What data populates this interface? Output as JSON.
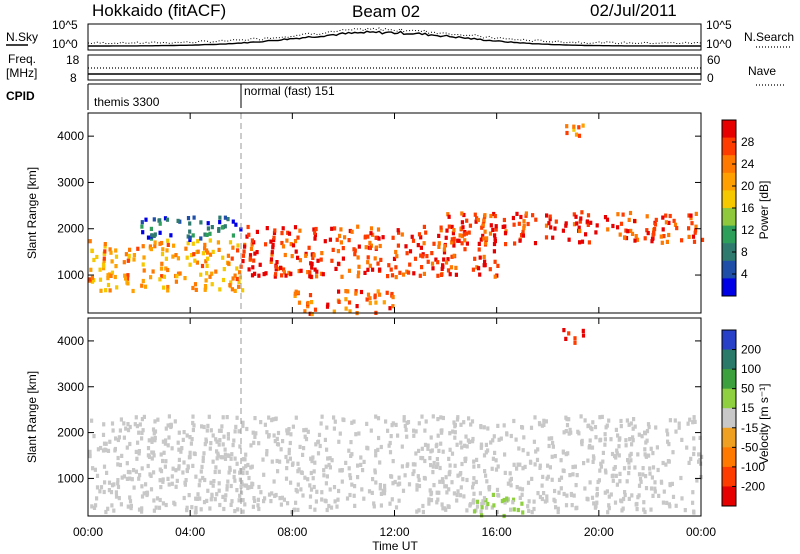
{
  "header": {
    "station": "Hokkaido (fitACF)",
    "beam": "Beam 02",
    "date": "02/Jul/2011"
  },
  "strip_panels": {
    "noise_left_label": "N.Sky",
    "noise_right_label": "N.Search",
    "noise_ticks_left": [
      "10^5",
      "10^0"
    ],
    "noise_ticks_right": [
      "10^5",
      "10^0"
    ],
    "freq_label_1": "Freq.",
    "freq_label_2": "[MHz]",
    "freq_ticks": [
      "18",
      "8"
    ],
    "nave_label": "Nave",
    "nave_ticks": [
      "60",
      "0"
    ],
    "cpid_label": "CPID",
    "cpid_modes": [
      {
        "label": "themis 3300",
        "start_hour": 0
      },
      {
        "label": "normal (fast) 151",
        "start_hour": 6
      }
    ]
  },
  "axes": {
    "x_label": "Time UT",
    "x_ticks": [
      "00:00",
      "04:00",
      "08:00",
      "12:00",
      "16:00",
      "20:00",
      "00:00"
    ],
    "y_label": "Slant Range [km]",
    "y_ticks": [
      "1000",
      "2000",
      "3000",
      "4000"
    ]
  },
  "power_colorbar": {
    "title": "Power [dB]",
    "ticks": [
      "28",
      "24",
      "20",
      "16",
      "12",
      "8",
      "4"
    ],
    "colors": [
      "#e60000",
      "#ff3c00",
      "#ff7800",
      "#ff9f00",
      "#f5c800",
      "#8fc83c",
      "#2e9f5a",
      "#2f7a6e",
      "#1e4ea8",
      "#0000e6"
    ]
  },
  "velocity_colorbar": {
    "title": "Velocity [m s⁻¹]",
    "ticks": [
      "200",
      "100",
      "50",
      "15",
      "-15",
      "-50",
      "-100",
      "-200"
    ],
    "colors": [
      "#2840c8",
      "#2a7a6a",
      "#3ca03c",
      "#8ed040",
      "#c8c8c8",
      "#f0a020",
      "#ff7800",
      "#ff3c00",
      "#e60000"
    ]
  },
  "chart_data": {
    "type": "heatmap",
    "x_range_hours": [
      0,
      24
    ],
    "y_range_km": [
      180,
      4500
    ],
    "power_db_range": [
      0,
      30
    ],
    "velocity_range": [
      -250,
      250
    ],
    "cpid_change_hour": 6,
    "power_regions": [
      {
        "x0": 0,
        "x1": 6,
        "y0": 700,
        "y1": 1800,
        "db": 20
      },
      {
        "x0": 2,
        "x1": 6,
        "y0": 1800,
        "y1": 2300,
        "db": 6
      },
      {
        "x0": 6,
        "x1": 16,
        "y0": 1000,
        "y1": 2100,
        "db": 26
      },
      {
        "x0": 8,
        "x1": 12,
        "y0": 200,
        "y1": 700,
        "db": 24
      },
      {
        "x0": 14,
        "x1": 24,
        "y0": 1700,
        "y1": 2400,
        "db": 26
      },
      {
        "x0": 18.5,
        "x1": 19.5,
        "y0": 4000,
        "y1": 4300,
        "db": 22
      }
    ],
    "velocity_regions": [
      {
        "x0": 0,
        "x1": 24,
        "y0": 300,
        "y1": 2400,
        "v": 0
      },
      {
        "x0": 18.5,
        "x1": 19.5,
        "y0": 4000,
        "y1": 4300,
        "v": -200
      },
      {
        "x0": 15,
        "x1": 17,
        "y0": 200,
        "y1": 700,
        "v": 40
      }
    ]
  }
}
